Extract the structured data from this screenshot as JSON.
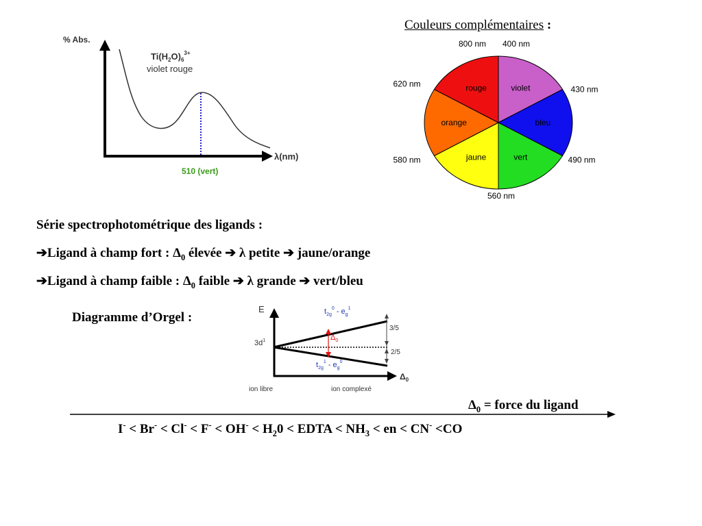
{
  "spectrum": {
    "ylabel": "% Abs.",
    "xlabel": "λ(nm)",
    "complex_main": "Ti(H",
    "complex_sub1": "2",
    "complex_mid": "O)",
    "complex_sub2": "6",
    "complex_sup": "3+",
    "complex_color": "violet rouge",
    "peak_label": "510 (vert)",
    "peak_label_color": "#3a9a1a"
  },
  "color_wheel": {
    "title": "Couleurs complémentaires",
    "title_suffix": " :",
    "sectors": [
      {
        "name": "violet",
        "color": "#c95fc9"
      },
      {
        "name": "bleu",
        "color": "#1010ee"
      },
      {
        "name": "vert",
        "color": "#22dd22"
      },
      {
        "name": "jaune",
        "color": "#ffff10"
      },
      {
        "name": "orange",
        "color": "#ff6a00"
      },
      {
        "name": "rouge",
        "color": "#ee1010"
      }
    ],
    "wavelengths": [
      "800 nm",
      "400 nm",
      "430 nm",
      "490 nm",
      "560 nm",
      "580 nm",
      "620 nm"
    ]
  },
  "series": {
    "title": "Série spectrophotométrique des ligands :",
    "strong": {
      "arrow": "➔",
      "text1": "Ligand à champ fort : ",
      "delta": "Δ",
      "delta_sub": "0",
      "text2": " élevée ",
      "arrow2": "➔",
      "lambda": " λ",
      "text3": " petite ",
      "arrow3": "➔",
      "text4": " jaune/orange"
    },
    "weak": {
      "arrow": "➔",
      "text1": "Ligand à champ faible : ",
      "delta": "Δ",
      "delta_sub": "0",
      "text2": " faible ",
      "arrow2": "➔",
      "lambda": " λ",
      "text3": " grande ",
      "arrow3": "➔",
      "text4": " vert/bleu"
    }
  },
  "orgel": {
    "label": "Diagramme d’Orgel :",
    "axis_e": "E",
    "axis_delta": "Δ",
    "axis_delta_sub": "0",
    "level_3d": "3d",
    "level_3d_sup": "1",
    "upper_t": "t",
    "upper_t_sub": "2g",
    "upper_t_sup": "0",
    "upper_dash": " - e",
    "upper_e_sub": "g",
    "upper_e_sup": "1",
    "lower_t": "t",
    "lower_t_sub": "2g",
    "lower_t_sup": "1",
    "lower_dash": " - e",
    "lower_e_sub": "g",
    "lower_e_sup": "0",
    "delta_marker": "Δ",
    "delta_marker_sub": "0",
    "frac_upper": "3/5",
    "frac_lower": "2/5",
    "ion_libre": "ion libre",
    "ion_complexe": "ion complexé"
  },
  "ligand_force": {
    "delta": "Δ",
    "delta_sub": "0",
    "text": " = force du ligand"
  },
  "ligand_series": [
    {
      "t": "I",
      "sup": "-"
    },
    {
      "t": " < Br",
      "sup": "-"
    },
    {
      "t": " < Cl",
      "sup": "-"
    },
    {
      "t": " < F",
      "sup": "-"
    },
    {
      "t": " < OH",
      "sup": "-"
    },
    {
      "t": " < H",
      "sub": "2"
    },
    {
      "t": "0 < EDTA < NH",
      "sub": "3"
    },
    {
      "t": " < en < CN",
      "sup": "-"
    },
    {
      "t": " <CO"
    }
  ]
}
